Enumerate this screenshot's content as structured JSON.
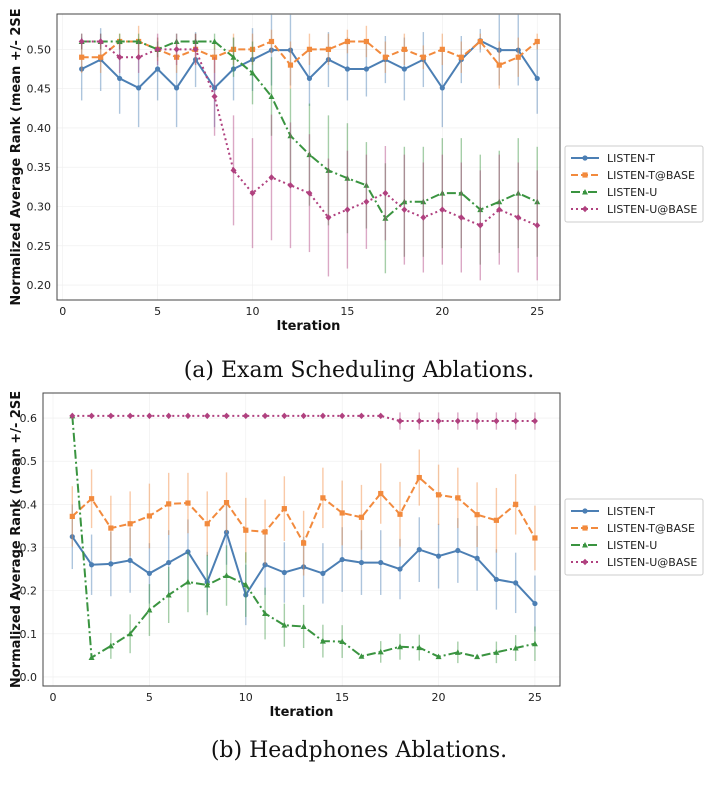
{
  "chart_data": [
    {
      "type": "line",
      "caption": "(a) Exam Scheduling Ablations.",
      "xlabel": "Iteration",
      "ylabel": "Normalized Average Rank (mean +/- 2SE",
      "xlim": [
        -0.3,
        26.2
      ],
      "ylim": [
        0.181,
        0.545
      ],
      "xticks": [
        0,
        5,
        10,
        15,
        20,
        25
      ],
      "yticks": [
        0.2,
        0.25,
        0.3,
        0.35,
        0.4,
        0.45,
        0.5
      ],
      "ytick_labels": [
        "0.20",
        "0.25",
        "0.30",
        "0.35",
        "0.40",
        "0.45",
        "0.50"
      ],
      "grid": true,
      "legend_position": "right-outside",
      "x": [
        1,
        2,
        3,
        4,
        5,
        6,
        7,
        8,
        9,
        10,
        11,
        12,
        13,
        14,
        15,
        16,
        17,
        18,
        19,
        20,
        21,
        22,
        23,
        24,
        25
      ],
      "series": [
        {
          "name": "LISTEN-T",
          "color": "#4c7fb4",
          "style": "solid",
          "marker": "circle",
          "values": [
            0.475,
            0.487,
            0.463,
            0.451,
            0.475,
            0.451,
            0.487,
            0.451,
            0.475,
            0.487,
            0.499,
            0.499,
            0.463,
            0.487,
            0.475,
            0.475,
            0.487,
            0.475,
            0.487,
            0.451,
            0.487,
            0.511,
            0.499,
            0.499,
            0.463
          ],
          "err": [
            0.04,
            0.04,
            0.045,
            0.05,
            0.04,
            0.05,
            0.035,
            0.05,
            0.04,
            0.04,
            0.045,
            0.045,
            0.035,
            0.035,
            0.04,
            0.035,
            0.03,
            0.04,
            0.035,
            0.05,
            0.03,
            0.015,
            0.045,
            0.045,
            0.045
          ]
        },
        {
          "name": "LISTEN-T@BASE",
          "color": "#f28a3d",
          "style": "dashed",
          "marker": "square",
          "values": [
            0.49,
            0.49,
            0.51,
            0.51,
            0.5,
            0.49,
            0.5,
            0.49,
            0.5,
            0.5,
            0.51,
            0.48,
            0.5,
            0.5,
            0.51,
            0.51,
            0.49,
            0.5,
            0.49,
            0.5,
            0.49,
            0.51,
            0.48,
            0.49,
            0.51
          ],
          "err": [
            0.02,
            0.02,
            0.01,
            0.02,
            0.015,
            0.02,
            0.02,
            0.02,
            0.02,
            0.02,
            0.015,
            0.03,
            0.02,
            0.02,
            0.015,
            0.02,
            0.02,
            0.02,
            0.015,
            0.02,
            0.02,
            0.01,
            0.03,
            0.025,
            0.01
          ]
        },
        {
          "name": "LISTEN-U",
          "color": "#3a9440",
          "style": "dashdot",
          "marker": "triangle",
          "values": [
            0.51,
            0.51,
            0.51,
            0.51,
            0.5,
            0.51,
            0.51,
            0.51,
            0.49,
            0.47,
            0.44,
            0.39,
            0.366,
            0.346,
            0.336,
            0.327,
            0.285,
            0.306,
            0.306,
            0.317,
            0.317,
            0.296,
            0.306,
            0.317,
            0.306
          ],
          "err": [
            0.01,
            0.01,
            0.01,
            0.01,
            0.01,
            0.01,
            0.01,
            0.01,
            0.025,
            0.04,
            0.05,
            0.06,
            0.065,
            0.07,
            0.07,
            0.055,
            0.07,
            0.07,
            0.07,
            0.07,
            0.07,
            0.07,
            0.065,
            0.07,
            0.07
          ]
        },
        {
          "name": "LISTEN-U@BASE",
          "color": "#b0417f",
          "style": "dotted",
          "marker": "diamond",
          "values": [
            0.51,
            0.51,
            0.49,
            0.49,
            0.5,
            0.5,
            0.5,
            0.44,
            0.346,
            0.317,
            0.337,
            0.327,
            0.317,
            0.286,
            0.296,
            0.306,
            0.317,
            0.296,
            0.286,
            0.296,
            0.286,
            0.276,
            0.296,
            0.286,
            0.276
          ],
          "err": [
            0.01,
            0.01,
            0.02,
            0.02,
            0.02,
            0.02,
            0.02,
            0.05,
            0.07,
            0.07,
            0.08,
            0.08,
            0.075,
            0.075,
            0.075,
            0.06,
            0.06,
            0.07,
            0.07,
            0.07,
            0.07,
            0.07,
            0.07,
            0.07,
            0.07
          ]
        }
      ]
    },
    {
      "type": "line",
      "caption": "(b) Headphones Ablations.",
      "xlabel": "Iteration",
      "ylabel": "Normalized Average Rank (mean +/- 2SE",
      "xlim": [
        -0.52,
        26.3
      ],
      "ylim": [
        -0.021,
        0.658
      ],
      "xticks": [
        0,
        5,
        10,
        15,
        20,
        25
      ],
      "yticks": [
        0.0,
        0.1,
        0.2,
        0.3,
        0.4,
        0.5,
        0.6
      ],
      "ytick_labels": [
        "0.0",
        "0.1",
        "0.2",
        "0.3",
        "0.4",
        "0.5",
        "0.6"
      ],
      "grid": true,
      "legend_position": "right-outside",
      "x": [
        1,
        2,
        3,
        4,
        5,
        6,
        7,
        8,
        9,
        10,
        11,
        12,
        13,
        14,
        15,
        16,
        17,
        18,
        19,
        20,
        21,
        22,
        23,
        24,
        25
      ],
      "series": [
        {
          "name": "LISTEN-T",
          "color": "#4c7fb4",
          "style": "solid",
          "marker": "circle",
          "values": [
            0.325,
            0.26,
            0.262,
            0.27,
            0.24,
            0.265,
            0.29,
            0.22,
            0.335,
            0.19,
            0.26,
            0.242,
            0.255,
            0.24,
            0.272,
            0.265,
            0.265,
            0.25,
            0.295,
            0.28,
            0.293,
            0.275,
            0.226,
            0.218,
            0.17
          ],
          "err": [
            0.075,
            0.07,
            0.075,
            0.075,
            0.07,
            0.075,
            0.075,
            0.07,
            0.075,
            0.07,
            0.07,
            0.07,
            0.07,
            0.07,
            0.075,
            0.075,
            0.075,
            0.07,
            0.075,
            0.075,
            0.075,
            0.075,
            0.07,
            0.07,
            0.065
          ]
        },
        {
          "name": "LISTEN-T@BASE",
          "color": "#f28a3d",
          "style": "dashed",
          "marker": "square",
          "values": [
            0.372,
            0.413,
            0.345,
            0.355,
            0.373,
            0.401,
            0.403,
            0.355,
            0.404,
            0.34,
            0.336,
            0.39,
            0.31,
            0.415,
            0.38,
            0.37,
            0.425,
            0.377,
            0.462,
            0.422,
            0.415,
            0.376,
            0.363,
            0.4,
            0.322
          ],
          "err": [
            0.07,
            0.068,
            0.075,
            0.075,
            0.075,
            0.072,
            0.07,
            0.075,
            0.07,
            0.075,
            0.075,
            0.075,
            0.075,
            0.07,
            0.075,
            0.075,
            0.07,
            0.075,
            0.065,
            0.07,
            0.07,
            0.075,
            0.075,
            0.07,
            0.075
          ]
        },
        {
          "name": "LISTEN-U",
          "color": "#3a9440",
          "style": "dashdot",
          "marker": "triangle",
          "values": [
            0.605,
            0.045,
            0.072,
            0.1,
            0.155,
            0.19,
            0.22,
            0.213,
            0.235,
            0.214,
            0.147,
            0.12,
            0.117,
            0.083,
            0.082,
            0.048,
            0.058,
            0.07,
            0.068,
            0.047,
            0.057,
            0.047,
            0.057,
            0.067,
            0.077
          ],
          "err": [
            0.0,
            0.0,
            0.03,
            0.045,
            0.06,
            0.065,
            0.07,
            0.07,
            0.07,
            0.075,
            0.06,
            0.05,
            0.05,
            0.038,
            0.038,
            0.0,
            0.025,
            0.03,
            0.03,
            0.0,
            0.025,
            0.0,
            0.025,
            0.03,
            0.04
          ]
        },
        {
          "name": "LISTEN-U@BASE",
          "color": "#b0417f",
          "style": "dotted",
          "marker": "diamond",
          "values": [
            0.605,
            0.605,
            0.605,
            0.605,
            0.605,
            0.605,
            0.605,
            0.605,
            0.605,
            0.605,
            0.605,
            0.605,
            0.605,
            0.605,
            0.605,
            0.605,
            0.605,
            0.593,
            0.593,
            0.593,
            0.593,
            0.593,
            0.593,
            0.593,
            0.593
          ],
          "err": [
            0,
            0,
            0,
            0,
            0,
            0,
            0,
            0,
            0,
            0,
            0,
            0,
            0,
            0,
            0,
            0,
            0,
            0.02,
            0.02,
            0.02,
            0.02,
            0.02,
            0.02,
            0.02,
            0.02
          ]
        }
      ]
    }
  ]
}
